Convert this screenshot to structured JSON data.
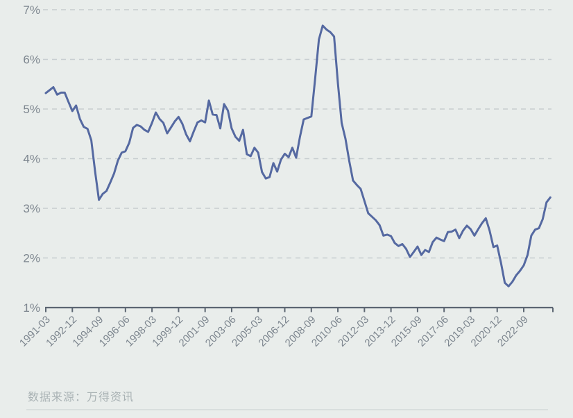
{
  "source_note": "数据来源：万得资讯",
  "colors": {
    "background": "#e9edeb",
    "line": "#5569a1",
    "grid": "#c7cdd0",
    "axis": "#5c6672",
    "tick_label": "#7c858e",
    "source_text": "#a9b2b4",
    "divider": "#d9dedd"
  },
  "chart_data": {
    "type": "line",
    "title": "",
    "xlabel": "",
    "ylabel": "",
    "legend": "none",
    "grid": "horizontal-dashed",
    "frequency": "quarterly",
    "x_start": "1991-03",
    "x_end": "2024-06",
    "ylim": [
      1,
      7
    ],
    "y_tick_labels": [
      "1%",
      "2%",
      "3%",
      "4%",
      "5%",
      "6%",
      "7%"
    ],
    "x_tick_labels": [
      "1991-03",
      "1992-12",
      "1994-09",
      "1996-06",
      "1998-03",
      "1999-12",
      "2001-09",
      "2003-06",
      "2005-03",
      "2006-12",
      "2008-09",
      "2010-06",
      "2012-03",
      "2013-12",
      "2015-09",
      "2017-06",
      "2019-03",
      "2020-12",
      "2022-09"
    ],
    "x_tick_every_n_points": 7,
    "values": [
      5.32,
      5.38,
      5.44,
      5.29,
      5.33,
      5.33,
      5.14,
      4.96,
      5.07,
      4.8,
      4.64,
      4.6,
      4.37,
      3.74,
      3.17,
      3.29,
      3.35,
      3.52,
      3.7,
      3.96,
      4.12,
      4.15,
      4.32,
      4.62,
      4.68,
      4.65,
      4.58,
      4.54,
      4.72,
      4.93,
      4.8,
      4.72,
      4.51,
      4.63,
      4.75,
      4.84,
      4.7,
      4.49,
      4.35,
      4.55,
      4.73,
      4.77,
      4.73,
      5.17,
      4.89,
      4.88,
      4.61,
      5.1,
      4.97,
      4.61,
      4.44,
      4.36,
      4.58,
      4.09,
      4.05,
      4.22,
      4.12,
      3.73,
      3.6,
      3.63,
      3.91,
      3.74,
      3.98,
      4.1,
      4.03,
      4.22,
      4.02,
      4.44,
      4.79,
      4.82,
      4.85,
      5.6,
      6.4,
      6.68,
      6.6,
      6.55,
      6.46,
      5.52,
      4.72,
      4.4,
      3.95,
      3.56,
      3.47,
      3.39,
      3.15,
      2.9,
      2.83,
      2.76,
      2.66,
      2.45,
      2.47,
      2.44,
      2.3,
      2.24,
      2.28,
      2.18,
      2.02,
      2.12,
      2.23,
      2.06,
      2.16,
      2.12,
      2.32,
      2.41,
      2.37,
      2.34,
      2.52,
      2.53,
      2.57,
      2.4,
      2.55,
      2.65,
      2.58,
      2.45,
      2.58,
      2.7,
      2.8,
      2.55,
      2.22,
      2.25,
      1.9,
      1.5,
      1.43,
      1.52,
      1.65,
      1.74,
      1.85,
      2.06,
      2.45,
      2.57,
      2.6,
      2.78,
      3.12,
      3.22
    ]
  }
}
